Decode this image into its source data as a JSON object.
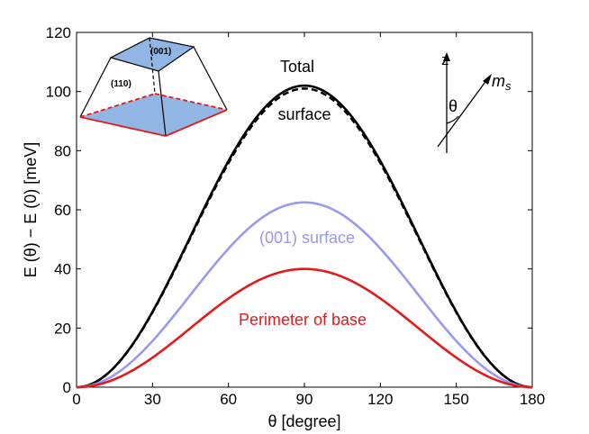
{
  "chart_data": {
    "type": "line",
    "title": "",
    "xlabel": "θ [degree]",
    "ylabel": "E (θ) − E (0) [meV]",
    "xlim": [
      0,
      180
    ],
    "ylim": [
      0,
      120
    ],
    "xticks": [
      "0",
      "30",
      "60",
      "90",
      "120",
      "150",
      "180"
    ],
    "yticks": [
      "0",
      "20",
      "40",
      "60",
      "80",
      "100",
      "120"
    ],
    "grid": false,
    "series": [
      {
        "name": "Total",
        "amplitude": 102,
        "shape": "sin^2(theta)",
        "color": "#000000",
        "style": "solid"
      },
      {
        "name": "surface",
        "amplitude": 101,
        "shape": "sin^2(theta)",
        "color": "#000000",
        "style": "dashed"
      },
      {
        "name": "(001) surface",
        "amplitude": 62.5,
        "shape": "sin^2(theta)",
        "color": "#9999ee",
        "style": "solid"
      },
      {
        "name": "Perimeter of base",
        "amplitude": 40,
        "shape": "sin^2(theta)",
        "color": "#e31a1c",
        "style": "solid"
      }
    ],
    "annotations": {
      "total": "Total",
      "surface": "surface",
      "surface001": "(001) surface",
      "perimeter": "Perimeter of base"
    },
    "inset_pyramid": {
      "top_label": "(001)",
      "side_label": "(110)"
    },
    "inset_axes": {
      "z_label": "z",
      "theta_label": "θ",
      "m_label": "m",
      "m_sub": "s"
    }
  }
}
